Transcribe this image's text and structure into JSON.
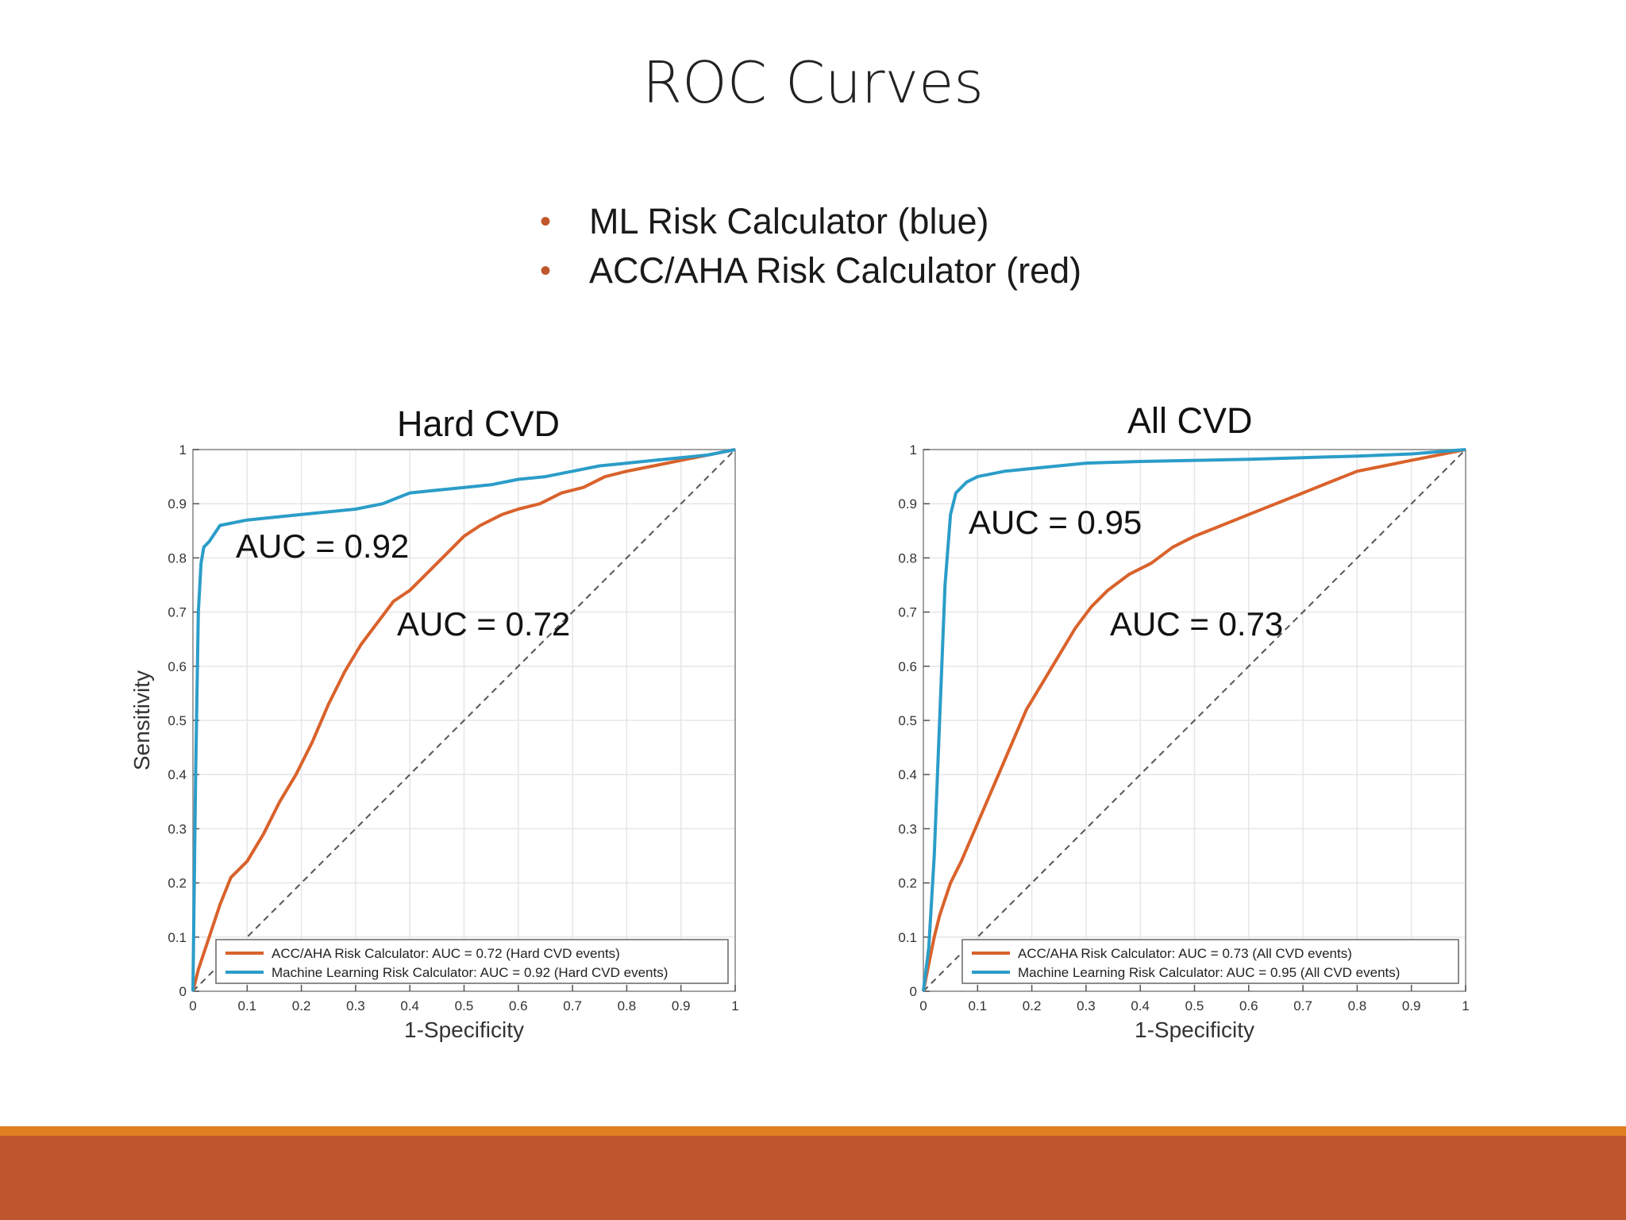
{
  "slide": {
    "title": "ROC Curves",
    "bullets": [
      "ML Risk Calculator (blue)",
      "ACC/AHA Risk Calculator (red)"
    ],
    "footer_accent": "#e07e22",
    "footer_color": "#bd562c",
    "bullet_color": "#c0572c"
  },
  "chart_data": [
    {
      "type": "line",
      "title": "Hard CVD",
      "xlabel": "1-Specificity",
      "ylabel": "Sensitivity",
      "xlim": [
        0,
        1
      ],
      "ylim": [
        0,
        1
      ],
      "xticks": [
        "0",
        "0.1",
        "0.2",
        "0.3",
        "0.4",
        "0.5",
        "0.6",
        "0.7",
        "0.8",
        "0.9",
        "1"
      ],
      "yticks": [
        "0",
        "0.1",
        "0.2",
        "0.3",
        "0.4",
        "0.5",
        "0.6",
        "0.7",
        "0.8",
        "0.9",
        "1"
      ],
      "grid": true,
      "legend_position": "bottom",
      "annotations": [
        "AUC = 0.92",
        "AUC = 0.72"
      ],
      "series": [
        {
          "name": "ACC/AHA Risk Calculator: AUC = 0.72 (Hard CVD events)",
          "color": "#d9622b",
          "x": [
            0,
            0.01,
            0.03,
            0.05,
            0.07,
            0.1,
            0.13,
            0.16,
            0.19,
            0.22,
            0.25,
            0.28,
            0.31,
            0.34,
            0.37,
            0.4,
            0.43,
            0.46,
            0.5,
            0.53,
            0.57,
            0.6,
            0.64,
            0.68,
            0.72,
            0.76,
            0.8,
            0.85,
            0.9,
            0.95,
            1
          ],
          "y": [
            0,
            0.04,
            0.1,
            0.16,
            0.21,
            0.24,
            0.29,
            0.35,
            0.4,
            0.46,
            0.53,
            0.59,
            0.64,
            0.68,
            0.72,
            0.74,
            0.77,
            0.8,
            0.84,
            0.86,
            0.88,
            0.89,
            0.9,
            0.92,
            0.93,
            0.95,
            0.96,
            0.97,
            0.98,
            0.99,
            1
          ]
        },
        {
          "name": "Machine Learning Risk Calculator: AUC = 0.92 (Hard CVD events)",
          "color": "#2b9dc9",
          "x": [
            0,
            0.005,
            0.01,
            0.015,
            0.02,
            0.03,
            0.05,
            0.1,
            0.15,
            0.2,
            0.25,
            0.3,
            0.35,
            0.4,
            0.45,
            0.5,
            0.55,
            0.6,
            0.65,
            0.7,
            0.75,
            0.8,
            0.85,
            0.9,
            0.95,
            1
          ],
          "y": [
            0,
            0.4,
            0.7,
            0.79,
            0.82,
            0.83,
            0.86,
            0.87,
            0.875,
            0.88,
            0.885,
            0.89,
            0.9,
            0.92,
            0.925,
            0.93,
            0.935,
            0.945,
            0.95,
            0.96,
            0.97,
            0.975,
            0.98,
            0.985,
            0.99,
            1
          ]
        },
        {
          "name": "",
          "color": "#555555",
          "dashed": true,
          "x": [
            0,
            1
          ],
          "y": [
            0,
            1
          ]
        }
      ]
    },
    {
      "type": "line",
      "title": "All CVD",
      "xlabel": "1-Specificity",
      "ylabel": "",
      "xlim": [
        0,
        1
      ],
      "ylim": [
        0,
        1
      ],
      "xticks": [
        "0",
        "0.1",
        "0.2",
        "0.3",
        "0.4",
        "0.5",
        "0.6",
        "0.7",
        "0.8",
        "0.9",
        "1"
      ],
      "yticks": [
        "0",
        "0.1",
        "0.2",
        "0.3",
        "0.4",
        "0.5",
        "0.6",
        "0.7",
        "0.8",
        "0.9",
        "1"
      ],
      "grid": true,
      "legend_position": "bottom",
      "annotations": [
        "AUC = 0.95",
        "AUC = 0.73"
      ],
      "series": [
        {
          "name": "ACC/AHA Risk Calculator: AUC = 0.73 (All CVD events)",
          "color": "#d9622b",
          "x": [
            0,
            0.01,
            0.02,
            0.03,
            0.05,
            0.07,
            0.1,
            0.13,
            0.16,
            0.19,
            0.22,
            0.25,
            0.28,
            0.31,
            0.34,
            0.38,
            0.42,
            0.46,
            0.5,
            0.55,
            0.6,
            0.65,
            0.7,
            0.75,
            0.8,
            0.85,
            0.9,
            0.95,
            1
          ],
          "y": [
            0,
            0.05,
            0.1,
            0.14,
            0.2,
            0.24,
            0.31,
            0.38,
            0.45,
            0.52,
            0.57,
            0.62,
            0.67,
            0.71,
            0.74,
            0.77,
            0.79,
            0.82,
            0.84,
            0.86,
            0.88,
            0.9,
            0.92,
            0.94,
            0.96,
            0.97,
            0.98,
            0.99,
            1
          ]
        },
        {
          "name": "Machine Learning Risk Calculator: AUC = 0.95 (All CVD events)",
          "color": "#2b9dc9",
          "x": [
            0,
            0.01,
            0.02,
            0.03,
            0.04,
            0.05,
            0.06,
            0.08,
            0.1,
            0.15,
            0.2,
            0.3,
            0.4,
            0.5,
            0.6,
            0.7,
            0.8,
            0.9,
            0.95,
            1
          ],
          "y": [
            0,
            0.08,
            0.25,
            0.5,
            0.75,
            0.88,
            0.92,
            0.94,
            0.95,
            0.96,
            0.965,
            0.975,
            0.978,
            0.98,
            0.982,
            0.985,
            0.988,
            0.992,
            0.996,
            1
          ]
        },
        {
          "name": "",
          "color": "#555555",
          "dashed": true,
          "x": [
            0,
            1
          ],
          "y": [
            0,
            1
          ]
        }
      ]
    }
  ]
}
